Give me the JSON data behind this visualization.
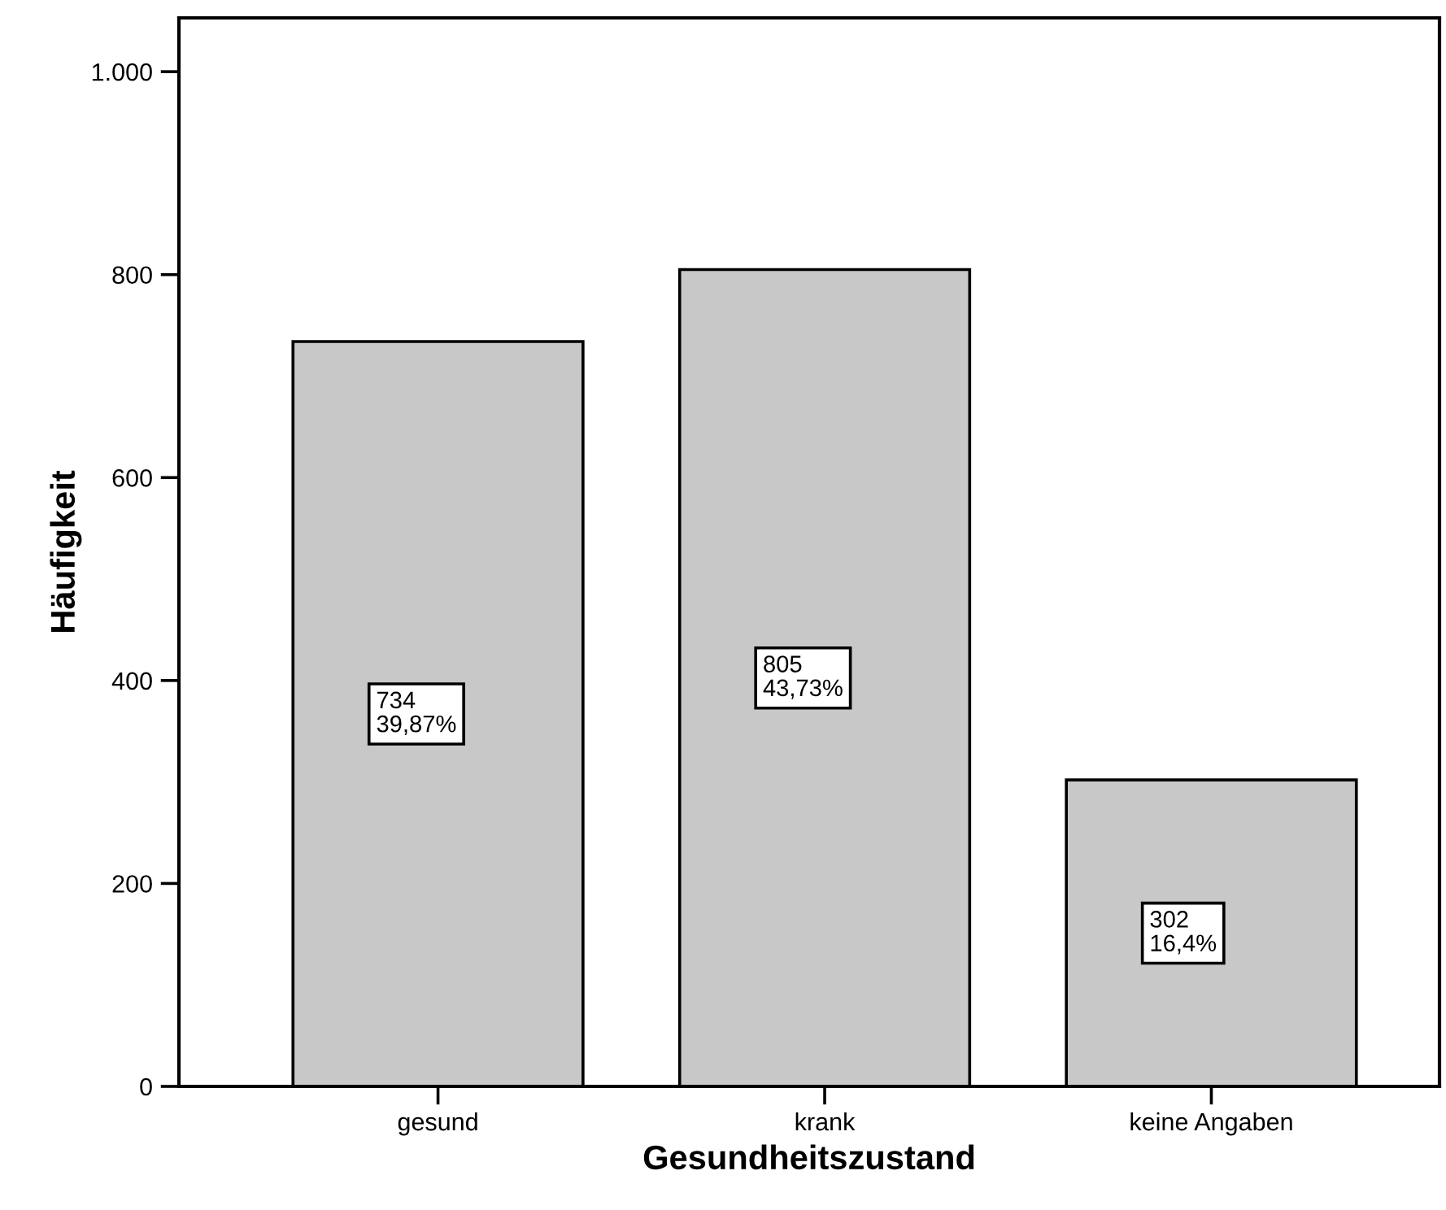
{
  "chart_data": {
    "type": "bar",
    "xlabel": "Gesundheitszustand",
    "ylabel": "Häufigkeit",
    "categories": [
      "gesund",
      "krank",
      "keine Angaben"
    ],
    "values": [
      734,
      805,
      302
    ],
    "value_labels": [
      "734\n39,87%",
      "805\n43,73%",
      "302\n16,4%"
    ],
    "color": "#c8c8c8",
    "ylim": [
      0,
      1053
    ],
    "yticks": [
      0,
      200,
      400,
      600,
      800,
      {
        "value": 1000,
        "label": "1.000"
      }
    ],
    "grid": false
  }
}
